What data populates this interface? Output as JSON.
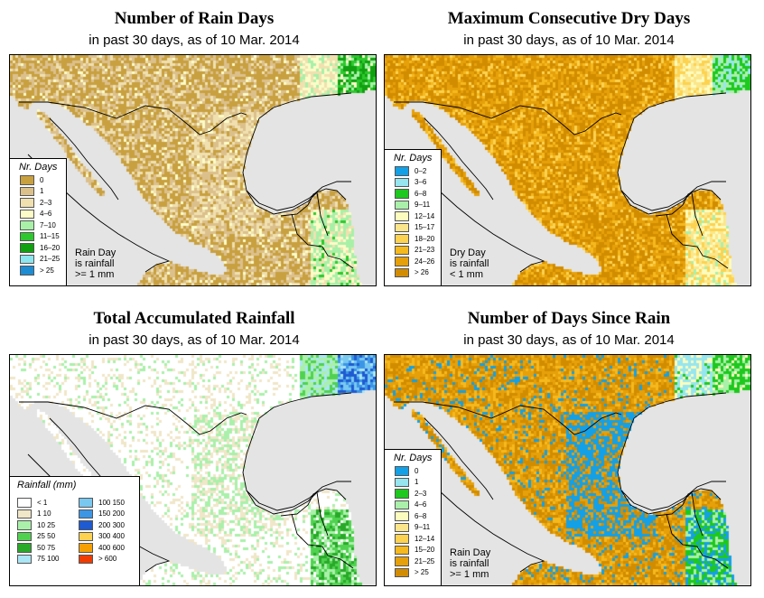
{
  "panels": [
    {
      "id": "rain-days",
      "title": "Number of Rain Days",
      "subtitle": "in past 30 days, as of  10 Mar. 2014",
      "legend_title": "Nr. Days",
      "legend": [
        {
          "label": "0",
          "color": "#c8a040"
        },
        {
          "label": "1",
          "color": "#dcc08c"
        },
        {
          "label": "2–3",
          "color": "#f0e0b0"
        },
        {
          "label": "4–6",
          "color": "#fcfcc8"
        },
        {
          "label": "7–10",
          "color": "#a8f0a8"
        },
        {
          "label": "11–15",
          "color": "#2dc82d"
        },
        {
          "label": "16–20",
          "color": "#10a010"
        },
        {
          "label": "21–25",
          "color": "#8ce6f0"
        },
        {
          "label": "> 25",
          "color": "#1e8cd2"
        }
      ],
      "note": [
        "Rain Day",
        "is rainfall",
        ">= 1 mm"
      ]
    },
    {
      "id": "dry-days",
      "title": "Maximum Consecutive Dry Days",
      "subtitle": "in past 30 days, as of  10 Mar. 2014",
      "legend_title": "Nr. Days",
      "legend": [
        {
          "label": "0–2",
          "color": "#14a0e6"
        },
        {
          "label": "3–6",
          "color": "#96e6f0"
        },
        {
          "label": "6–8",
          "color": "#1ec81e"
        },
        {
          "label": "9–11",
          "color": "#aaf0aa"
        },
        {
          "label": "12–14",
          "color": "#fcfcbe"
        },
        {
          "label": "15–17",
          "color": "#fce68c"
        },
        {
          "label": "18–20",
          "color": "#fcd250"
        },
        {
          "label": "21–23",
          "color": "#f5b91e"
        },
        {
          "label": "24–26",
          "color": "#e6a00a"
        },
        {
          "label": "> 26",
          "color": "#d28c00"
        }
      ],
      "note": [
        "Dry Day",
        "is rainfall",
        "< 1 mm"
      ]
    },
    {
      "id": "accumulated-rainfall",
      "title": "Total Accumulated Rainfall",
      "subtitle": "in past 30 days, as of  10 Mar. 2014",
      "legend_title": "Rainfall (mm)",
      "legend_col1": [
        {
          "label": "< 1",
          "color": "#ffffff"
        },
        {
          "label": "1    10",
          "color": "#f0e6c8"
        },
        {
          "label": "10    25",
          "color": "#aaf0aa"
        },
        {
          "label": "25    50",
          "color": "#50d250"
        },
        {
          "label": "50    75",
          "color": "#28aa28"
        },
        {
          "label": "75   100",
          "color": "#aae6f5"
        }
      ],
      "legend_col2": [
        {
          "label": "100   150",
          "color": "#78c8f0"
        },
        {
          "label": "150   200",
          "color": "#3c96e6"
        },
        {
          "label": "200   300",
          "color": "#1e5ad2"
        },
        {
          "label": "300   400",
          "color": "#fcd250"
        },
        {
          "label": "400   600",
          "color": "#f5a000"
        },
        {
          "label": "> 600",
          "color": "#f03c00"
        }
      ]
    },
    {
      "id": "days-since-rain",
      "title": "Number of Days Since Rain",
      "subtitle": "in past 30 days, as of  10 Mar. 2014",
      "legend_title": "Nr. Days",
      "legend": [
        {
          "label": "0",
          "color": "#14a0e6"
        },
        {
          "label": "1",
          "color": "#96e6f0"
        },
        {
          "label": "2–3",
          "color": "#1ec81e"
        },
        {
          "label": "4–6",
          "color": "#aaf0aa"
        },
        {
          "label": "6–8",
          "color": "#fcfcbe"
        },
        {
          "label": "9–11",
          "color": "#fce68c"
        },
        {
          "label": "12–14",
          "color": "#fcd250"
        },
        {
          "label": "15–20",
          "color": "#f5b91e"
        },
        {
          "label": "21–25",
          "color": "#e6a00a"
        },
        {
          "label": "> 25",
          "color": "#d28c00"
        }
      ],
      "note": [
        "Rain Day",
        "is rainfall",
        ">= 1 mm"
      ]
    }
  ],
  "colors": {
    "ocean": "#e4e4e4",
    "border": "#000000"
  }
}
